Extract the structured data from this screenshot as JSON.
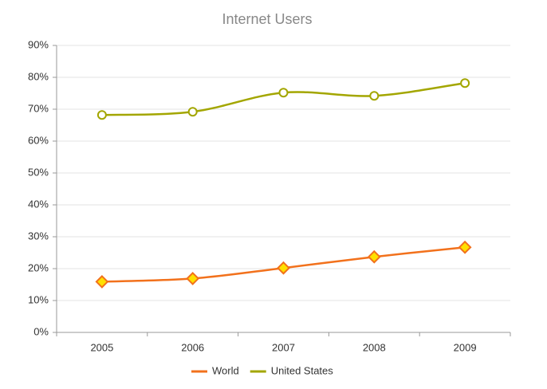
{
  "chart_data": {
    "type": "line",
    "title": "Internet Users",
    "categories": [
      "2005",
      "2006",
      "2007",
      "2008",
      "2009"
    ],
    "series": [
      {
        "name": "World",
        "color": "#f2711c",
        "marker": "diamond",
        "marker_fill": "#ffe000",
        "values": [
          15.9,
          16.9,
          20.2,
          23.7,
          26.7
        ]
      },
      {
        "name": "United States",
        "color": "#a3a600",
        "marker": "circle",
        "marker_fill": "#ffffff",
        "values": [
          68.2,
          69.2,
          75.2,
          74.2,
          78.2
        ]
      }
    ],
    "ylim": [
      0,
      90
    ],
    "yticks": [
      {
        "value": 0,
        "label": "0%"
      },
      {
        "value": 10,
        "label": "10%"
      },
      {
        "value": 20,
        "label": "20%"
      },
      {
        "value": 30,
        "label": "30%"
      },
      {
        "value": 40,
        "label": "40%"
      },
      {
        "value": 50,
        "label": "50%"
      },
      {
        "value": 60,
        "label": "60%"
      },
      {
        "value": 70,
        "label": "70%"
      },
      {
        "value": 80,
        "label": "80%"
      },
      {
        "value": 90,
        "label": "90%"
      }
    ],
    "grid": true,
    "smooth": true,
    "legend": "bottom"
  }
}
